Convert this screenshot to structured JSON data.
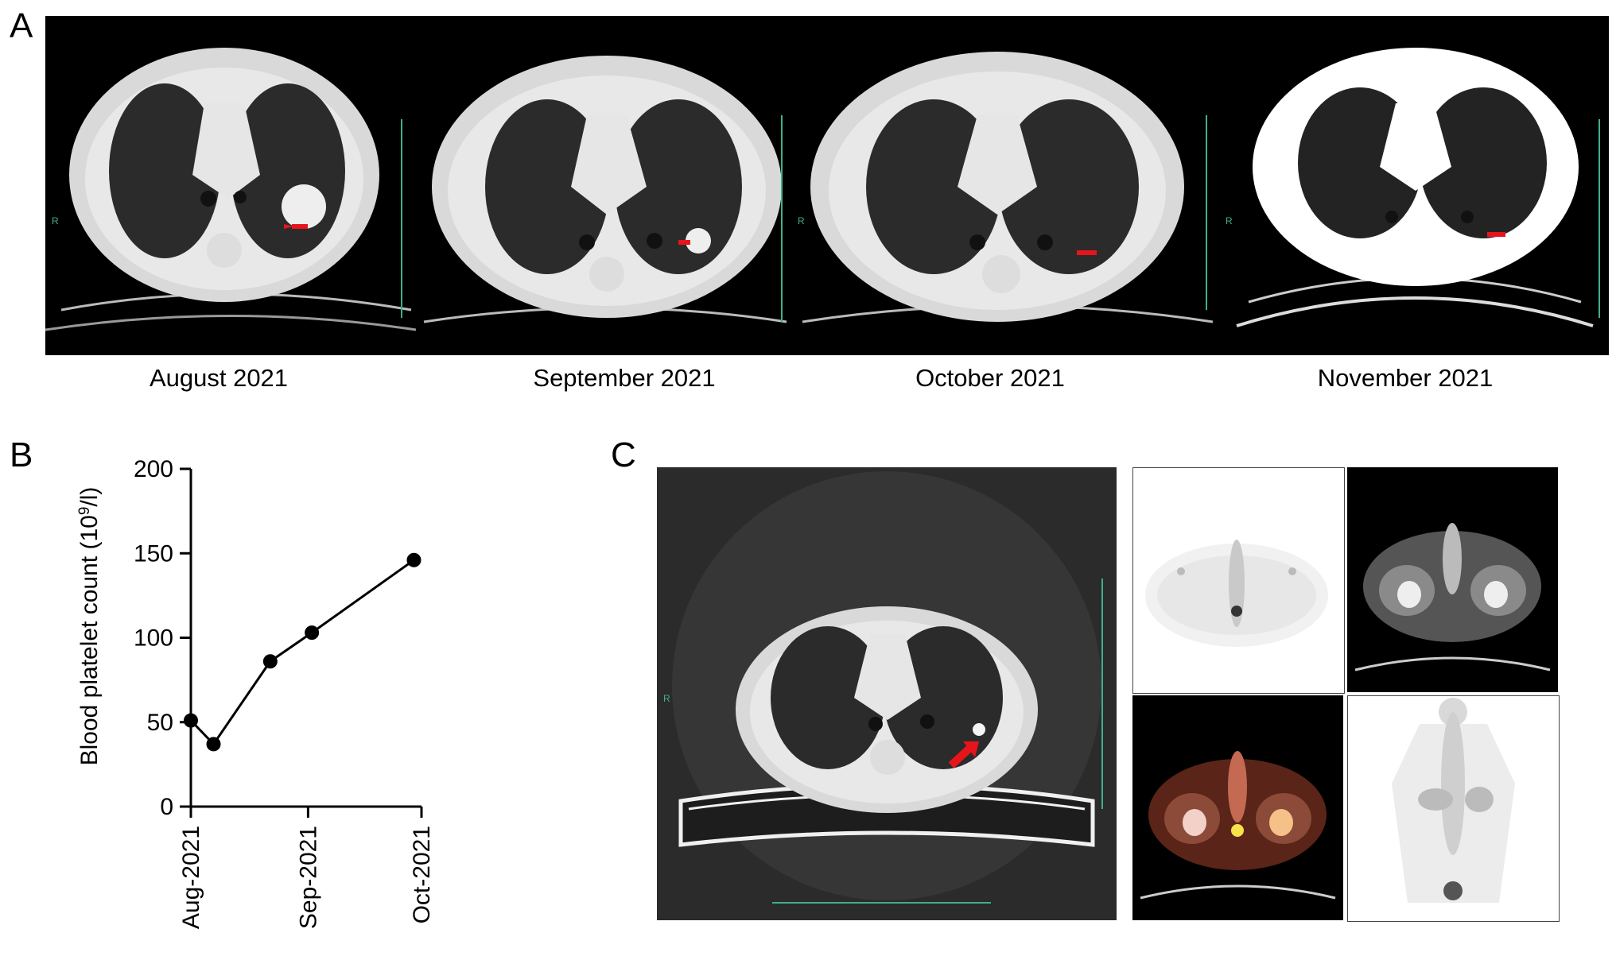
{
  "panel_letters": {
    "a": "A",
    "b": "B",
    "c": "C"
  },
  "panel_a": {
    "captions": [
      "August 2021",
      "September 2021",
      "October 2021",
      "November 2021"
    ],
    "scan_marker": "R"
  },
  "panel_c": {
    "scan_marker": "R"
  },
  "chart_data": {
    "type": "line",
    "title": "",
    "xlabel": "",
    "ylabel": "Blood platelet count (10⁹/l)",
    "ylabel_parts": {
      "main": "Blood platelet count (10",
      "sup": "9",
      "tail": "/l)"
    },
    "x_tick_labels": [
      "Aug-2021",
      "Sep-2021",
      "Oct-2021"
    ],
    "x_tick_days": [
      0,
      31,
      61
    ],
    "y_ticks": [
      0,
      50,
      100,
      150,
      200
    ],
    "ylim": [
      0,
      200
    ],
    "xlim_days": [
      0,
      61
    ],
    "series": [
      {
        "x_days": [
          0,
          6,
          21,
          32,
          59
        ],
        "values": [
          51,
          37,
          86,
          103,
          146
        ]
      }
    ],
    "grid": false,
    "legend": "none",
    "colors": {
      "line": "#000000",
      "marker": "#000000"
    }
  },
  "colors": {
    "arrow": "#e8141c",
    "scan_bg": "#000000",
    "ruler": "#3fae8f"
  }
}
